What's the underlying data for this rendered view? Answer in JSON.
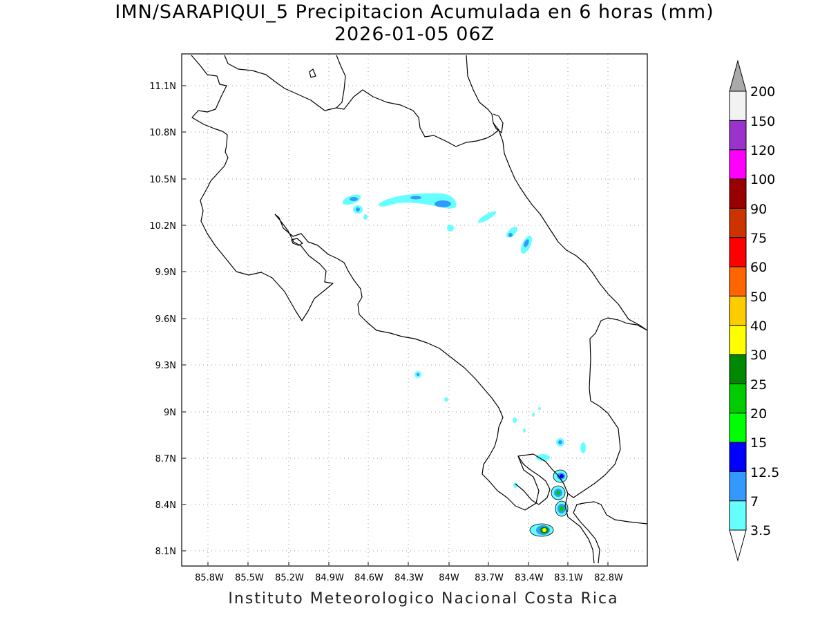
{
  "title": {
    "line1": "IMN/SARAPIQUI_5 Precipitacion Acumulada en 6 horas (mm)",
    "line2": "2026-01-05 06Z"
  },
  "footer": "Instituto Meteorologico Nacional Costa Rica",
  "map": {
    "lon_labels": [
      "85.8W",
      "85.5W",
      "85.2W",
      "84.9W",
      "84.6W",
      "84.3W",
      "84W",
      "83.7W",
      "83.4W",
      "83.1W",
      "82.8W"
    ],
    "lat_labels": [
      "11.1N",
      "10.8N",
      "10.5N",
      "10.2N",
      "9.9N",
      "9.6N",
      "9.3N",
      "9N",
      "8.7N",
      "8.4N",
      "8.1N"
    ]
  },
  "colorbar": {
    "levels": [
      "3.5",
      "7",
      "12.5",
      "15",
      "20",
      "25",
      "30",
      "40",
      "50",
      "60",
      "75",
      "90",
      "100",
      "120",
      "150",
      "200"
    ],
    "colors": [
      "#66ffff",
      "#3399ff",
      "#0000ff",
      "#00ff00",
      "#00cc00",
      "#008800",
      "#ffff00",
      "#ffcc00",
      "#ff6600",
      "#ff0000",
      "#cc3300",
      "#990000",
      "#ff00ff",
      "#9933cc",
      "#f2f2f2",
      "#aaaaaa"
    ]
  }
}
